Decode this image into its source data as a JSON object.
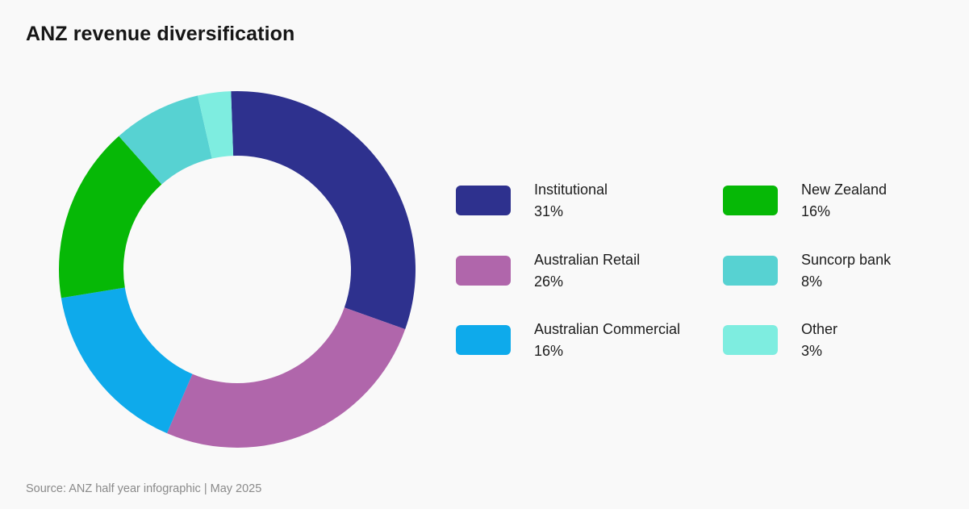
{
  "title": "ANZ revenue diversification",
  "source": "Source: ANZ half year infographic | May 2025",
  "chart_data": {
    "type": "pie",
    "variant": "donut",
    "title": "ANZ revenue diversification",
    "categories": [
      "Institutional",
      "Australian Retail",
      "Australian Commercial",
      "New Zealand",
      "Suncorp bank",
      "Other"
    ],
    "values": [
      31,
      26,
      16,
      16,
      8,
      3
    ],
    "labels": [
      "31%",
      "26%",
      "16%",
      "16%",
      "8%",
      "3%"
    ],
    "colors": [
      "#2e318e",
      "#b066ab",
      "#0eaaeb",
      "#06b806",
      "#57d2d2",
      "#7eede0"
    ],
    "unit": "%",
    "legend_position": "right",
    "source": "Source: ANZ half year infographic | May 2025"
  },
  "legend": {
    "items": [
      {
        "label": "Institutional",
        "value": "31%",
        "color": "#2e318e"
      },
      {
        "label": "Australian Retail",
        "value": "26%",
        "color": "#b066ab"
      },
      {
        "label": "Australian Commercial",
        "value": "16%",
        "color": "#0eaaeb"
      },
      {
        "label": "New Zealand",
        "value": "16%",
        "color": "#06b806"
      },
      {
        "label": "Suncorp bank",
        "value": "8%",
        "color": "#57d2d2"
      },
      {
        "label": "Other",
        "value": "3%",
        "color": "#7eede0"
      }
    ]
  }
}
